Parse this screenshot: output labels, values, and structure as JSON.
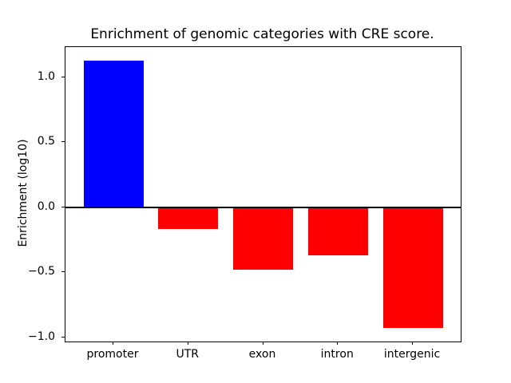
{
  "chart_data": {
    "type": "bar",
    "title": "Enrichment of genomic categories with CRE score.",
    "xlabel": "",
    "ylabel": "Enrichment (log10)",
    "categories": [
      "promoter",
      "UTR",
      "exon",
      "intron",
      "intergenic"
    ],
    "values": [
      1.13,
      -0.17,
      -0.48,
      -0.37,
      -0.93
    ],
    "bar_colors": [
      "#0000ff",
      "#ff0000",
      "#ff0000",
      "#ff0000",
      "#ff0000"
    ],
    "positive_color": "#0000ff",
    "negative_color": "#ff0000",
    "ylim": [
      -1.033,
      1.233
    ],
    "xlim": [
      -0.64,
      4.64
    ],
    "bar_width": 0.8,
    "yticks": [
      1.0,
      0.5,
      0.0,
      -0.5,
      -1.0
    ],
    "ytick_labels": [
      "1.0",
      "0.5",
      "0.0",
      "−0.5",
      "−1.0"
    ],
    "zero_line": true,
    "zero_line_color": "#000000",
    "grid": false,
    "legend": false,
    "background_color": "#ffffff",
    "axis_color": "#000000"
  }
}
